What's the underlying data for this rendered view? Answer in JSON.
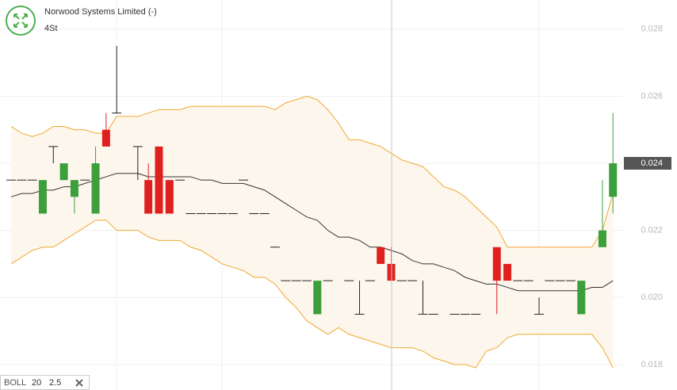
{
  "header": {
    "title": "Norwood Systems Limited (-)",
    "subtitle": "4St"
  },
  "chart_data": {
    "type": "candlestick",
    "series": {
      "open": [
        0.0235,
        0.0235,
        0.0235,
        0.0225,
        0.0245,
        0.0235,
        0.023,
        0.0235,
        0.0225,
        0.025,
        0.0255,
        null,
        0.0245,
        0.0235,
        0.0245,
        0.0235,
        0.0235,
        0.0225,
        0.0225,
        0.0225,
        0.0225,
        0.0225,
        0.0235,
        0.0225,
        0.0225,
        0.0215,
        0.0205,
        0.0205,
        0.0205,
        0.0195,
        0.0205,
        null,
        0.0205,
        0.0195,
        0.0205,
        0.0215,
        0.021,
        0.0205,
        0.0205,
        0.0195,
        0.0195,
        null,
        0.0195,
        0.0195,
        0.0195,
        null,
        0.0215,
        0.021,
        0.0205,
        0.0205,
        0.0195,
        0.0205,
        0.0205,
        0.0205,
        0.0195,
        null,
        0.0215,
        0.023
      ],
      "high": [
        0.0235,
        0.0235,
        0.0235,
        0.0235,
        0.0245,
        0.024,
        0.0235,
        0.0235,
        0.0245,
        0.0255,
        0.0275,
        null,
        0.0245,
        0.024,
        0.0245,
        0.0235,
        0.0235,
        0.0225,
        0.0225,
        0.0225,
        0.0225,
        0.0225,
        0.0235,
        0.0225,
        0.0225,
        0.0215,
        0.0205,
        0.0205,
        0.0205,
        0.0205,
        0.0205,
        null,
        0.0205,
        0.0205,
        0.0205,
        0.0215,
        0.0215,
        0.0205,
        0.0205,
        0.0205,
        0.0195,
        null,
        0.0195,
        0.0195,
        0.0195,
        null,
        0.0215,
        0.021,
        0.0205,
        0.0205,
        0.02,
        0.0205,
        0.0205,
        0.0205,
        0.0205,
        null,
        0.0235,
        0.0255
      ],
      "low": [
        0.0235,
        0.0235,
        0.0235,
        0.0225,
        0.024,
        0.0235,
        0.0225,
        0.0235,
        0.0225,
        0.0245,
        0.0255,
        null,
        0.0235,
        0.0225,
        0.0225,
        0.0225,
        0.0235,
        0.0225,
        0.0225,
        0.0225,
        0.0225,
        0.0225,
        0.0235,
        0.0225,
        0.0225,
        0.0215,
        0.0205,
        0.0205,
        0.0205,
        0.0195,
        0.0205,
        null,
        0.0205,
        0.0195,
        0.0205,
        0.021,
        0.0205,
        0.0205,
        0.0205,
        0.0195,
        0.0195,
        null,
        0.0195,
        0.0195,
        0.0195,
        null,
        0.0195,
        0.0205,
        0.0205,
        0.0205,
        0.0195,
        0.0205,
        0.0205,
        0.0205,
        0.0195,
        null,
        0.0215,
        0.0225
      ],
      "close": [
        0.0235,
        0.0235,
        0.0235,
        0.0235,
        0.0245,
        0.024,
        0.0235,
        0.0235,
        0.024,
        0.0245,
        0.0255,
        null,
        0.0245,
        0.0225,
        0.0225,
        0.0225,
        0.0235,
        0.0225,
        0.0225,
        0.0225,
        0.0225,
        0.0225,
        0.0235,
        0.0225,
        0.0225,
        0.0215,
        0.0205,
        0.0205,
        0.0205,
        0.0205,
        0.0205,
        null,
        0.0205,
        0.0195,
        0.0205,
        0.021,
        0.0205,
        0.0205,
        0.0205,
        0.0195,
        0.0195,
        null,
        0.0195,
        0.0195,
        0.0195,
        null,
        0.0205,
        0.0205,
        0.0205,
        0.0205,
        0.0195,
        0.0205,
        0.0205,
        0.0205,
        0.0205,
        null,
        0.022,
        0.024
      ]
    },
    "up_color": "#3c9f3c",
    "down_color": "#e0201e",
    "flat_color": "#222222",
    "bands": {
      "upper": [
        0.0251,
        0.0249,
        0.0248,
        0.0249,
        0.0251,
        0.0251,
        0.025,
        0.025,
        0.0249,
        0.0249,
        0.0254,
        0.0254,
        0.0254,
        0.0255,
        0.0256,
        0.0256,
        0.0256,
        0.0257,
        0.0257,
        0.0257,
        0.0257,
        0.0257,
        0.0257,
        0.0257,
        0.0257,
        0.0256,
        0.0258,
        0.0259,
        0.026,
        0.0259,
        0.0256,
        0.0252,
        0.0247,
        0.0247,
        0.0246,
        0.0245,
        0.0243,
        0.0241,
        0.024,
        0.0239,
        0.0236,
        0.0233,
        0.0232,
        0.023,
        0.0227,
        0.0224,
        0.0221,
        0.0215,
        0.0215,
        0.0215,
        0.0215,
        0.0215,
        0.0215,
        0.0215,
        0.0215,
        0.0215,
        0.022,
        0.0231
      ],
      "middle": [
        0.023,
        0.0231,
        0.0231,
        0.0232,
        0.0232,
        0.0233,
        0.0233,
        0.0234,
        0.0235,
        0.0236,
        0.0237,
        0.0237,
        0.0237,
        0.0236,
        0.0236,
        0.0236,
        0.0236,
        0.0236,
        0.0235,
        0.0235,
        0.0234,
        0.0234,
        0.0234,
        0.0233,
        0.0232,
        0.023,
        0.0228,
        0.0226,
        0.0224,
        0.0223,
        0.022,
        0.0218,
        0.0218,
        0.0217,
        0.0215,
        0.0215,
        0.0214,
        0.0213,
        0.0211,
        0.021,
        0.021,
        0.0209,
        0.0208,
        0.0206,
        0.0205,
        0.0204,
        0.0204,
        0.0203,
        0.0202,
        0.0202,
        0.0202,
        0.0202,
        0.0202,
        0.0202,
        0.0202,
        0.0203,
        0.0203,
        0.0205
      ],
      "lower": [
        0.021,
        0.0212,
        0.0214,
        0.0215,
        0.0215,
        0.0217,
        0.0219,
        0.0221,
        0.0223,
        0.0223,
        0.022,
        0.022,
        0.022,
        0.0218,
        0.0217,
        0.0217,
        0.0217,
        0.0215,
        0.0214,
        0.0212,
        0.021,
        0.0209,
        0.0208,
        0.0206,
        0.0206,
        0.0204,
        0.02,
        0.0197,
        0.0193,
        0.0191,
        0.0189,
        0.0191,
        0.0189,
        0.0188,
        0.0187,
        0.0186,
        0.0185,
        0.0185,
        0.0185,
        0.0184,
        0.0182,
        0.0181,
        0.018,
        0.018,
        0.0179,
        0.0184,
        0.0185,
        0.0188,
        0.0189,
        0.0189,
        0.0189,
        0.0189,
        0.0189,
        0.0189,
        0.0189,
        0.0189,
        0.0185,
        0.0179
      ],
      "color": "#f0a830",
      "middle_color": "#333333",
      "fill": "#fdf6ec"
    },
    "ylim": [
      0.01724,
      0.02887
    ],
    "yticks": [
      0.018,
      {
        "value": 0.02,
        "label": "0.020"
      },
      0.022,
      0.024,
      0.026,
      0.028
    ],
    "last_price": 0.024,
    "grid": true
  },
  "indicator": {
    "name": "BOLL",
    "period": 20,
    "stddev": 2.5
  }
}
